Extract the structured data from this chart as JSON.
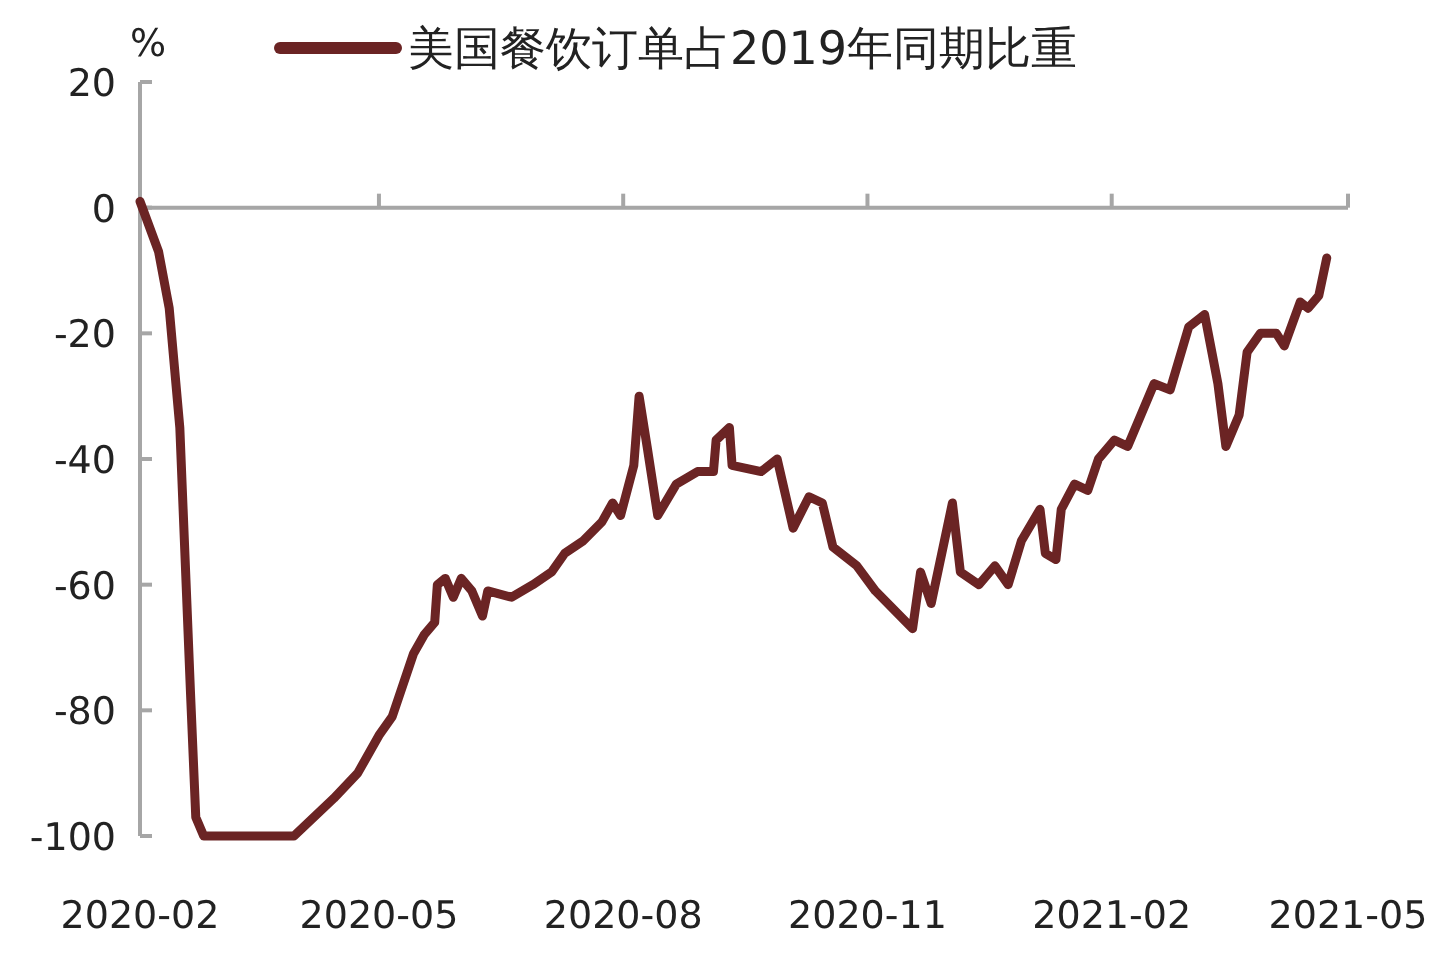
{
  "chart_data": {
    "type": "line",
    "ylabel": "%",
    "x": [
      "2020-02-01",
      "2020-02-08",
      "2020-02-12",
      "2020-02-16",
      "2020-02-20",
      "2020-02-22",
      "2020-02-25",
      "2020-03-30",
      "2020-04-14",
      "2020-04-23",
      "2020-05-01",
      "2020-05-06",
      "2020-05-14",
      "2020-05-18",
      "2020-05-22",
      "2020-05-23",
      "2020-05-26",
      "2020-05-29",
      "2020-06-01",
      "2020-06-05",
      "2020-06-09",
      "2020-06-11",
      "2020-06-20",
      "2020-06-28",
      "2020-07-05",
      "2020-07-10",
      "2020-07-17",
      "2020-07-24",
      "2020-07-28",
      "2020-07-31",
      "2020-08-05",
      "2020-08-07",
      "2020-08-10",
      "2020-08-14",
      "2020-08-21",
      "2020-08-29",
      "2020-09-04",
      "2020-09-05",
      "2020-09-10",
      "2020-09-11",
      "2020-09-22",
      "2020-09-28",
      "2020-10-04",
      "2020-10-10",
      "2020-10-15",
      "2020-10-19",
      "2020-10-28",
      "2020-11-04",
      "2020-11-18",
      "2020-11-21",
      "2020-11-25",
      "2020-12-03",
      "2020-12-06",
      "2020-12-13",
      "2020-12-19",
      "2020-12-24",
      "2020-12-29",
      "2021-01-05",
      "2021-01-07",
      "2021-01-11",
      "2021-01-13",
      "2021-01-18",
      "2021-01-23",
      "2021-01-27",
      "2021-02-02",
      "2021-02-07",
      "2021-02-17",
      "2021-02-23",
      "2021-03-02",
      "2021-03-08",
      "2021-03-13",
      "2021-03-16",
      "2021-03-21",
      "2021-03-24",
      "2021-03-29",
      "2021-04-04",
      "2021-04-07",
      "2021-04-13",
      "2021-04-16",
      "2021-04-20",
      "2021-04-23"
    ],
    "series": [
      {
        "name": "美国餐饮订单占2019年同期比重",
        "color": "#6b2424",
        "values": [
          1,
          -7,
          -16,
          -35,
          -77,
          -97,
          -100,
          -100,
          -94,
          -90,
          -84,
          -81,
          -71,
          -68,
          -66,
          -60,
          -59,
          -62,
          -59,
          -61,
          -65,
          -61,
          -62,
          -60,
          -58,
          -55,
          -53,
          -50,
          -47,
          -49,
          -41,
          -30,
          -38,
          -49,
          -44,
          -42,
          -42,
          -37,
          -35,
          -41,
          -42,
          -40,
          -51,
          -46,
          -47,
          -54,
          -57,
          -61,
          -67,
          -58,
          -63,
          -47,
          -58,
          -60,
          -57,
          -60,
          -53,
          -48,
          -55,
          -56,
          -48,
          -44,
          -45,
          -40,
          -37,
          -38,
          -28,
          -29,
          -19,
          -17,
          -28,
          -38,
          -33,
          -23,
          -20,
          -20,
          -22,
          -15,
          -16,
          -14,
          -8
        ]
      }
    ],
    "xlim": [
      "2020-02-01",
      "2021-05-01"
    ],
    "xticks": [
      {
        "value": "2020-02-01",
        "label": "2020-02"
      },
      {
        "value": "2020-05-01",
        "label": "2020-05"
      },
      {
        "value": "2020-08-01",
        "label": "2020-08"
      },
      {
        "value": "2020-11-01",
        "label": "2020-11"
      },
      {
        "value": "2021-02-01",
        "label": "2021-02"
      },
      {
        "value": "2021-05-01",
        "label": "2021-05"
      }
    ],
    "ylim": [
      -100,
      20
    ],
    "yticks": [
      20,
      0,
      -20,
      -40,
      -60,
      -80,
      -100
    ],
    "legend": "top",
    "marker": "none",
    "line_style": "solid"
  }
}
